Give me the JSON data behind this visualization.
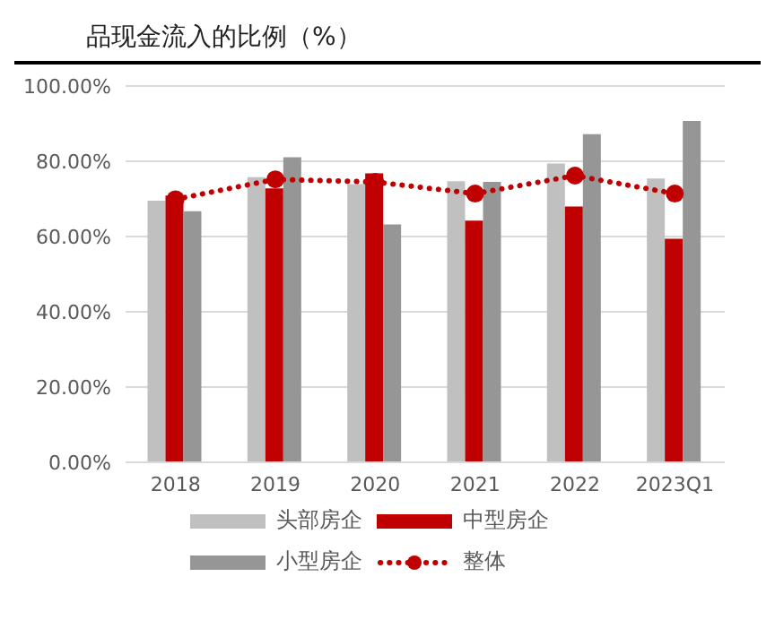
{
  "chart_data": {
    "type": "bar",
    "title": "品现金流入的比例（%）",
    "categories": [
      "2018",
      "2019",
      "2020",
      "2021",
      "2022",
      "2023Q1"
    ],
    "series": [
      {
        "name": "头部房企",
        "color": "#c0c0c0",
        "values": [
          69.5,
          75.8,
          73.9,
          74.7,
          79.4,
          75.4
        ]
      },
      {
        "name": "中型房企",
        "color": "#c00000",
        "values": [
          70.9,
          72.8,
          76.8,
          64.2,
          68.0,
          59.4
        ]
      },
      {
        "name": "小型房企",
        "color": "#969696",
        "values": [
          66.7,
          81.1,
          63.2,
          74.5,
          87.2,
          90.7
        ]
      },
      {
        "name": "整体",
        "type": "line",
        "color": "#c00000",
        "values": [
          69.9,
          75.2,
          74.5,
          71.4,
          76.2,
          71.4
        ],
        "marker": "circle",
        "line_style": "dotted"
      }
    ],
    "ylim": [
      0,
      100
    ],
    "yticks": [
      {
        "value": 0,
        "label": "0.00%"
      },
      {
        "value": 20,
        "label": "20.00%"
      },
      {
        "value": 40,
        "label": "40.00%"
      },
      {
        "value": 60,
        "label": "60.00%"
      },
      {
        "value": 80,
        "label": "80.00%"
      },
      {
        "value": 100,
        "label": "100.00%"
      }
    ],
    "grid": "y",
    "legend": "bottom"
  }
}
